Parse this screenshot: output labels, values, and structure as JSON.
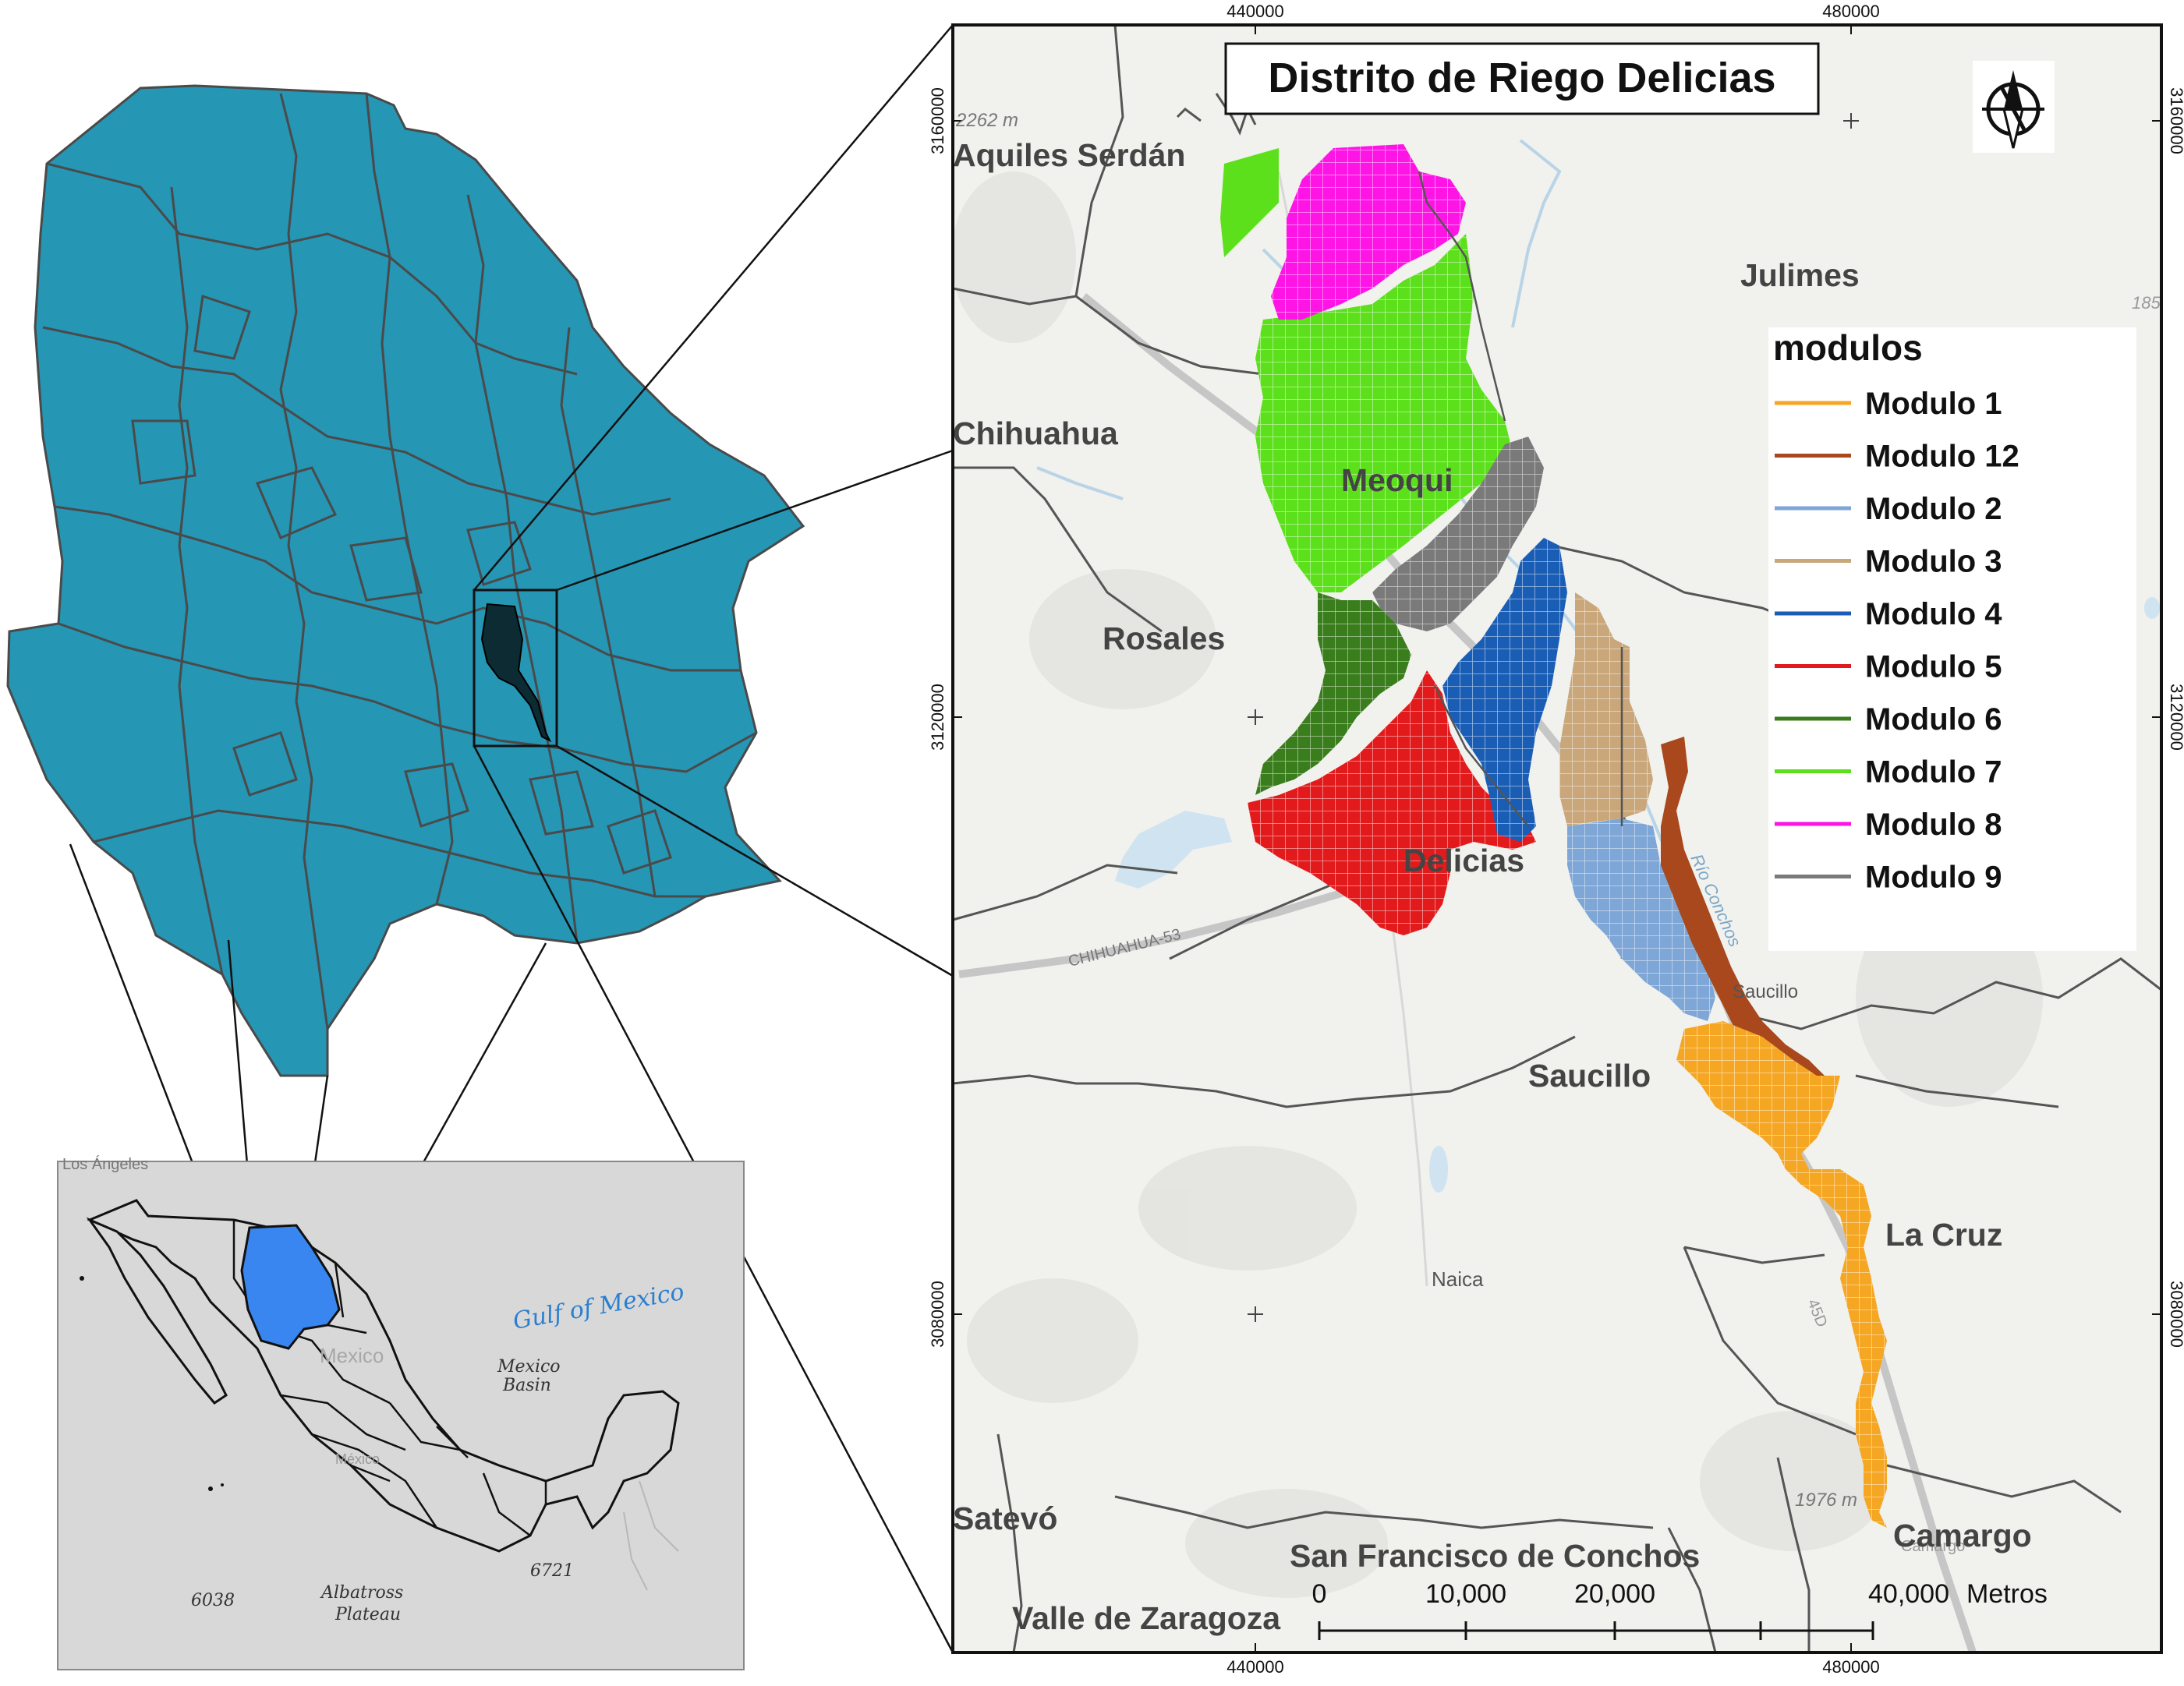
{
  "main_map": {
    "title": "Distrito de Riego Delicias",
    "coords": {
      "top_x": [
        "440000",
        "480000"
      ],
      "bottom_x": [
        "440000",
        "480000"
      ],
      "left_y": [
        "3160000",
        "3120000",
        "3080000"
      ],
      "right_y": [
        "3160000",
        "3120000",
        "3080000"
      ]
    },
    "municipios": {
      "aquiles_serdan": "Aquiles Serdán",
      "chihuahua": "Chihuahua",
      "rosales": "Rosales",
      "julimes": "Julimes",
      "meoqui": "Meoqui",
      "delicias": "Delicias",
      "saucillo": "Saucillo",
      "la_cruz": "La Cruz",
      "satevo": "Satevó",
      "camargo": "Camargo",
      "san_francisco": "San Francisco de Conchos",
      "valle_zaragoza": "Valle de Zaragoza"
    },
    "basemap_labels": {
      "elev_1": "2262 m",
      "elev_2": "1976 m",
      "naica": "Naica",
      "saucillo_town": "Saucillo",
      "highway": "CHIHUAHUA-53",
      "river": "Río Conchos",
      "route": "45D",
      "num_185": "185",
      "camargo_town": "Camargo"
    },
    "legend": {
      "title": "modulos",
      "items": [
        {
          "label": "Modulo 1",
          "color": "#f5a623"
        },
        {
          "label": "Modulo 12",
          "color": "#a8481c"
        },
        {
          "label": "Modulo 2",
          "color": "#7ea6d6"
        },
        {
          "label": "Modulo 3",
          "color": "#c9a77a"
        },
        {
          "label": "Modulo 4",
          "color": "#1a5db5"
        },
        {
          "label": "Modulo 5",
          "color": "#e31a1c"
        },
        {
          "label": "Modulo 6",
          "color": "#3a7d1c"
        },
        {
          "label": "Modulo 7",
          "color": "#5ce01c"
        },
        {
          "label": "Modulo 8",
          "color": "#ff14e6"
        },
        {
          "label": "Modulo 9",
          "color": "#7a7a7a"
        }
      ]
    },
    "scale_bar": {
      "ticks": [
        "0",
        "10,000",
        "20,000",
        "40,000"
      ],
      "units": "Metros"
    }
  },
  "state_map": {
    "fill": "#2596b4"
  },
  "mexico_inset": {
    "labels": {
      "los_angeles": "Los Ángeles",
      "gulf": "Gulf of Mexico",
      "mexico_basin_1": "Mexico",
      "mexico_basin_2": "Basin",
      "mexico_faded": "Mexico",
      "mexico_city": "México",
      "depth_6038": "6038",
      "depth_6721": "6721",
      "albatross_1": "Albatross",
      "albatross_2": "Plateau"
    },
    "highlight": "#3a86f0"
  }
}
